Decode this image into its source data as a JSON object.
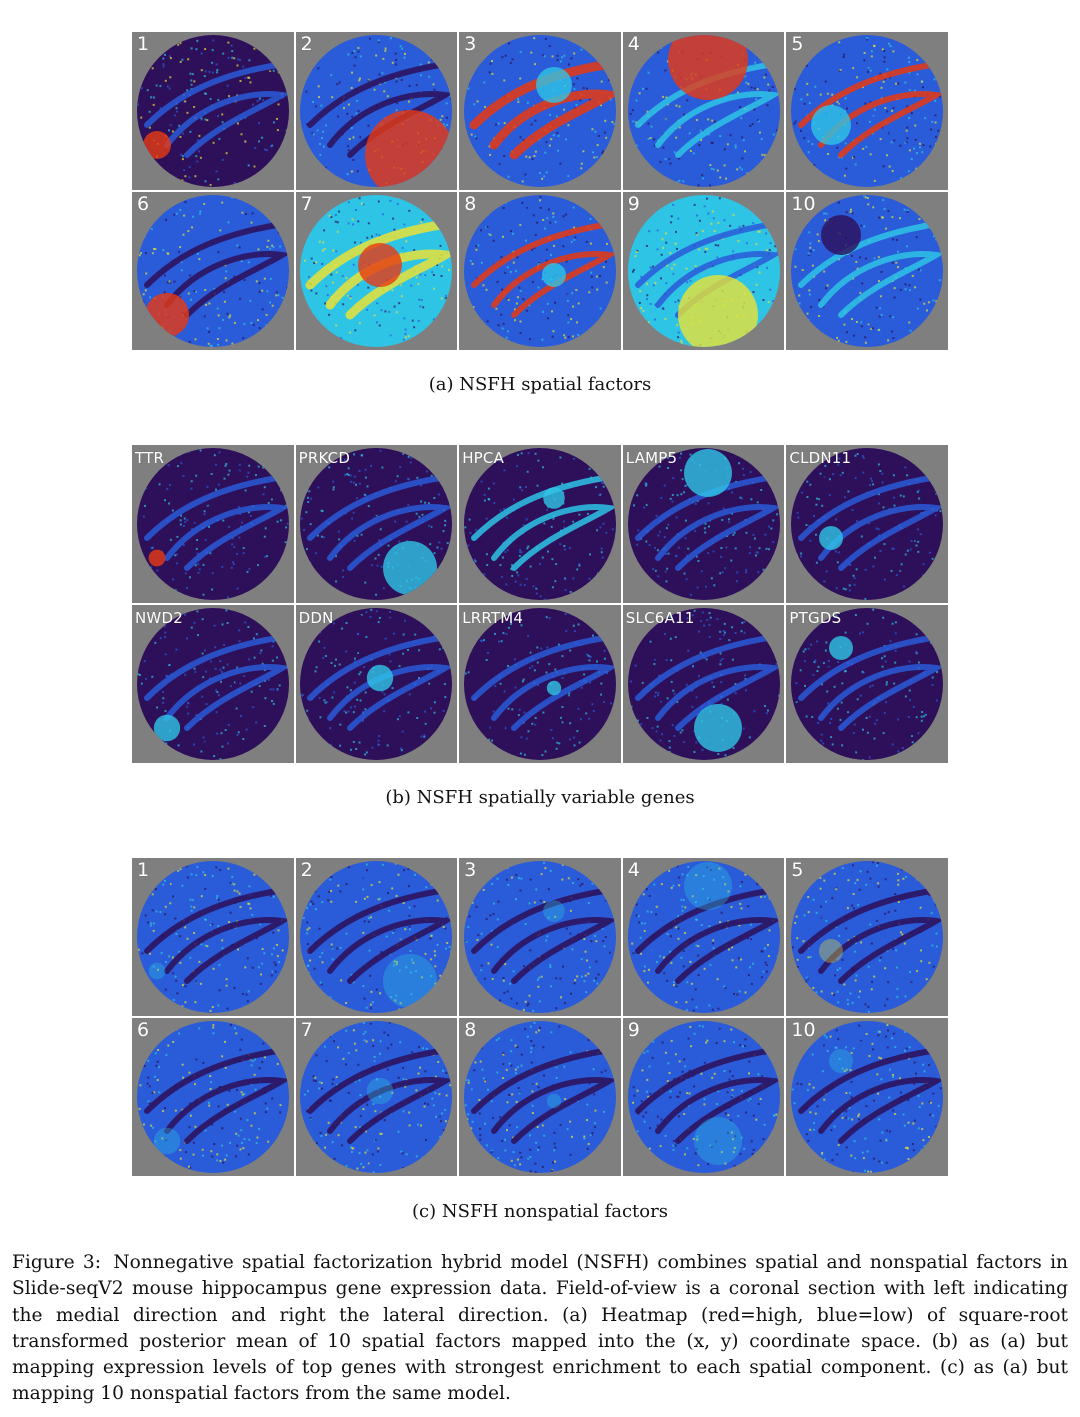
{
  "panel_a": {
    "labels": [
      "1",
      "2",
      "3",
      "4",
      "5",
      "6",
      "7",
      "8",
      "9",
      "10"
    ],
    "caption": "(a) NSFH spatial factors"
  },
  "panel_b": {
    "labels": [
      "TTR",
      "PRKCD",
      "HPCA",
      "LAMP5",
      "CLDN11",
      "NWD2",
      "DDN",
      "LRRTM4",
      "SLC6A11",
      "PTGDS"
    ],
    "caption": "(b) NSFH spatially variable genes"
  },
  "panel_c": {
    "labels": [
      "1",
      "2",
      "3",
      "4",
      "5",
      "6",
      "7",
      "8",
      "9",
      "10"
    ],
    "caption": "(c) NSFH nonspatial factors"
  },
  "figure_caption": {
    "lead": "Figure 3:",
    "body": "Nonnegative spatial factorization hybrid model (NSFH) combines spatial and nonspatial factors in Slide-seqV2 mouse hippocampus gene expression data. Field-of-view is a coronal section with left indicating the medial direction and right the lateral direction. (a) Heatmap (red=high, blue=low) of square-root transformed posterior mean of 10 spatial factors mapped into the (x, y) coordinate space. (b) as (a) but mapping expression levels of top genes with strongest enrichment to each spatial component. (c) as (a) but mapping 10 nonspatial factors from the same model."
  },
  "colors": {
    "tile_background": "#7f7f7f",
    "heat_low": "#2d0f5a",
    "heat_mid_blue": "#2a5bd8",
    "heat_cyan": "#2ec4e6",
    "heat_yellow": "#e8e236",
    "heat_high": "#e83a12"
  }
}
